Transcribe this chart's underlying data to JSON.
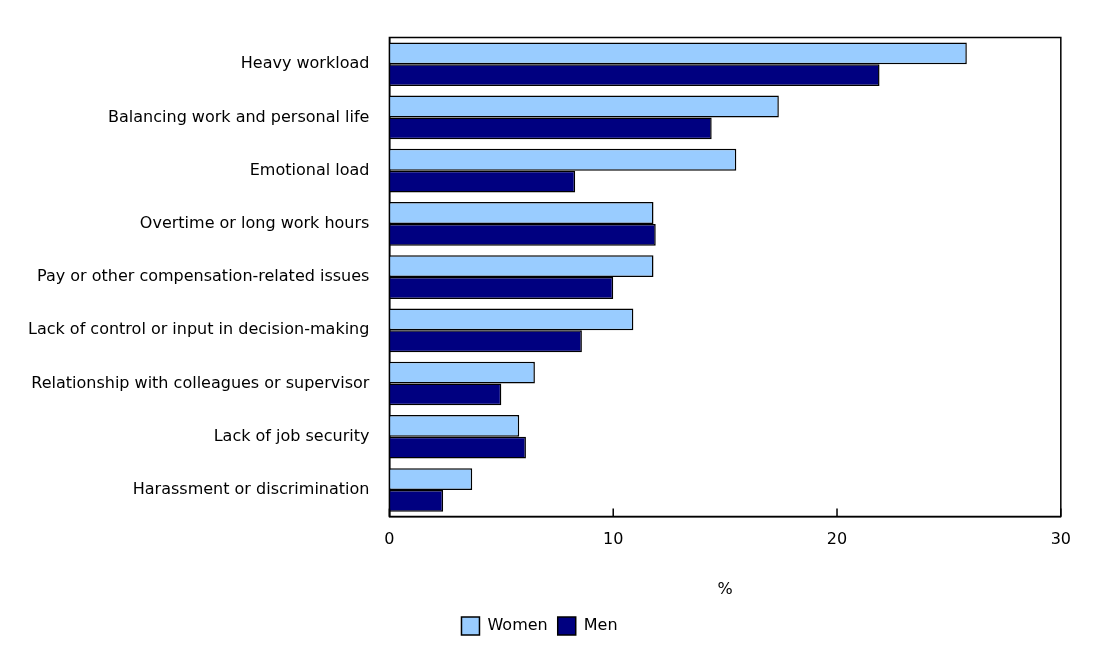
{
  "chart_data": {
    "type": "bar",
    "orientation": "horizontal",
    "xlabel": "%",
    "categories": [
      "Heavy workload",
      "Balancing work and personal life",
      "Emotional load",
      "Overtime or long work hours",
      "Pay or other compensation-related issues",
      "Lack of control or input in decision-making",
      "Relationship with colleagues or supervisor",
      "Lack of job security",
      "Harassment or discrimination"
    ],
    "series": [
      {
        "name": "Women",
        "color": "#99ccff",
        "values": [
          25.8,
          17.4,
          15.5,
          11.8,
          11.8,
          10.9,
          6.5,
          5.8,
          3.7
        ]
      },
      {
        "name": "Men",
        "color": "#000080",
        "values": [
          21.9,
          14.4,
          8.3,
          11.9,
          10.0,
          8.6,
          5.0,
          6.1,
          2.4
        ]
      }
    ],
    "xlim": [
      0,
      30
    ],
    "xticks": [
      0,
      10,
      20,
      30
    ],
    "grid": false,
    "legend": "bottom"
  }
}
